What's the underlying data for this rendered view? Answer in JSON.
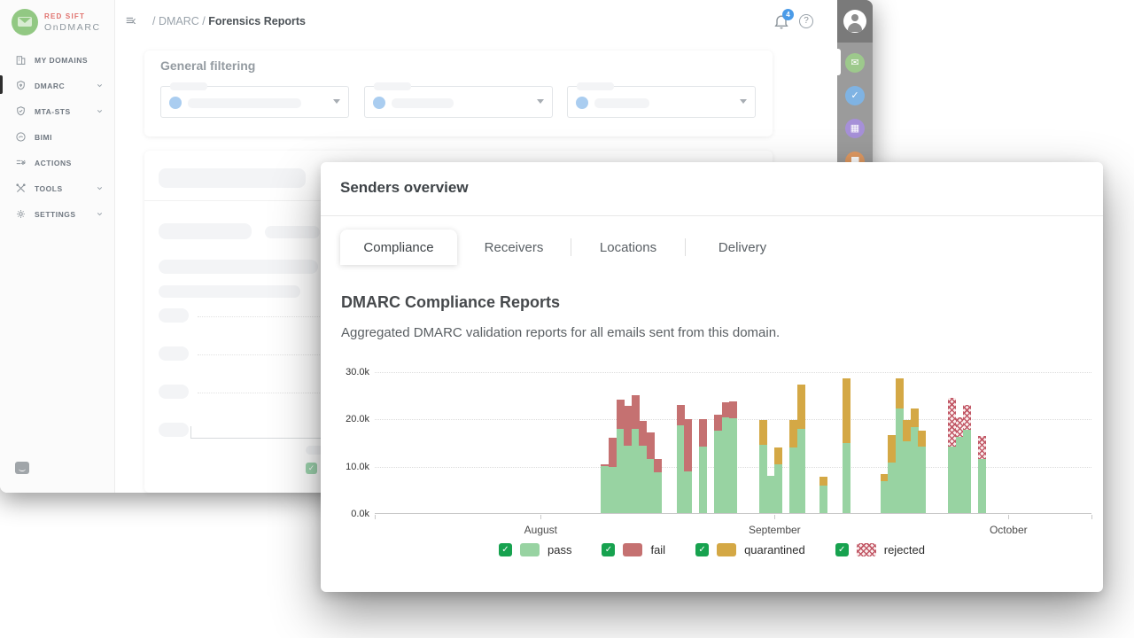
{
  "sidebar": {
    "logo": {
      "line1": "RED SIFT",
      "line2": "OnDMARC"
    },
    "items": [
      {
        "label": "MY DOMAINS",
        "chevron": false,
        "active": false
      },
      {
        "label": "DMARC",
        "chevron": true,
        "active": true
      },
      {
        "label": "MTA-STS",
        "chevron": true,
        "active": false
      },
      {
        "label": "BIMI",
        "chevron": false,
        "active": false
      },
      {
        "label": "ACTIONS",
        "chevron": false,
        "active": false
      },
      {
        "label": "TOOLS",
        "chevron": true,
        "active": false
      },
      {
        "label": "SETTINGS",
        "chevron": true,
        "active": false
      }
    ]
  },
  "topbar": {
    "breadcrumb_prefix": "/ DMARC / ",
    "breadcrumb_current": "Forensics Reports",
    "notifications_count": "4",
    "help_label": "?"
  },
  "filters": {
    "title": "General filtering"
  },
  "overlay": {
    "title": "Senders overview",
    "tabs": [
      {
        "label": "Compliance",
        "active": true
      },
      {
        "label": "Receivers",
        "active": false
      },
      {
        "label": "Locations",
        "active": false
      },
      {
        "label": "Delivery",
        "active": false
      }
    ],
    "heading": "DMARC Compliance Reports",
    "subtitle": "Aggregated DMARC validation reports for all emails sent from this domain."
  },
  "chart_data": {
    "type": "bar",
    "stacked": true,
    "title": "DMARC Compliance Reports",
    "ylim": [
      0,
      30000
    ],
    "grid": "dotted-horizontal",
    "legend_position": "bottom",
    "y_ticks": [
      {
        "label": "0.0k",
        "value": 0
      },
      {
        "label": "10.0k",
        "value": 10000
      },
      {
        "label": "20.0k",
        "value": 20000
      },
      {
        "label": "30.0k",
        "value": 30000
      }
    ],
    "axis_days": 95,
    "x_ticks": [
      {
        "label": "",
        "day": 0
      },
      {
        "label": "August",
        "day": 22
      },
      {
        "label": "September",
        "day": 53
      },
      {
        "label": "October",
        "day": 84
      },
      {
        "label": "",
        "day": 95
      }
    ],
    "series": [
      {
        "name": "pass",
        "color": "#98d3a2",
        "pattern": "solid",
        "checked": true
      },
      {
        "name": "fail",
        "color": "#c57171",
        "pattern": "solid",
        "checked": true
      },
      {
        "name": "quarantined",
        "color": "#d4a845",
        "pattern": "solid",
        "checked": true
      },
      {
        "name": "rejected",
        "color": "#bf5261",
        "pattern": "crosshatch",
        "checked": true
      }
    ],
    "bars": [
      {
        "day": 30,
        "pass": 9900,
        "fail": 500,
        "quarantined": 0,
        "rejected": 0
      },
      {
        "day": 31,
        "pass": 9800,
        "fail": 6200,
        "quarantined": 0,
        "rejected": 0
      },
      {
        "day": 32,
        "pass": 17800,
        "fail": 6200,
        "quarantined": 0,
        "rejected": 0
      },
      {
        "day": 33,
        "pass": 14300,
        "fail": 8300,
        "quarantined": 0,
        "rejected": 0
      },
      {
        "day": 34,
        "pass": 17900,
        "fail": 7000,
        "quarantined": 0,
        "rejected": 0
      },
      {
        "day": 35,
        "pass": 14300,
        "fail": 5200,
        "quarantined": 0,
        "rejected": 0
      },
      {
        "day": 36,
        "pass": 11500,
        "fail": 5500,
        "quarantined": 0,
        "rejected": 0
      },
      {
        "day": 37,
        "pass": 8600,
        "fail": 2800,
        "quarantined": 0,
        "rejected": 0
      },
      {
        "day": 40,
        "pass": 18500,
        "fail": 4400,
        "quarantined": 0,
        "rejected": 0
      },
      {
        "day": 41,
        "pass": 8900,
        "fail": 11000,
        "quarantined": 0,
        "rejected": 0
      },
      {
        "day": 43,
        "pass": 14100,
        "fail": 5700,
        "quarantined": 0,
        "rejected": 0
      },
      {
        "day": 45,
        "pass": 17500,
        "fail": 3400,
        "quarantined": 0,
        "rejected": 0
      },
      {
        "day": 46,
        "pass": 20300,
        "fail": 3100,
        "quarantined": 0,
        "rejected": 0
      },
      {
        "day": 47,
        "pass": 20000,
        "fail": 3700,
        "quarantined": 0,
        "rejected": 0
      },
      {
        "day": 51,
        "pass": 14400,
        "fail": 0,
        "quarantined": 5300,
        "rejected": 0
      },
      {
        "day": 52,
        "pass": 7900,
        "fail": 0,
        "quarantined": 0,
        "rejected": 0
      },
      {
        "day": 53,
        "pass": 10400,
        "fail": 0,
        "quarantined": 3400,
        "rejected": 0
      },
      {
        "day": 55,
        "pass": 13800,
        "fail": 0,
        "quarantined": 5900,
        "rejected": 0
      },
      {
        "day": 56,
        "pass": 17800,
        "fail": 0,
        "quarantined": 9300,
        "rejected": 0
      },
      {
        "day": 59,
        "pass": 5800,
        "fail": 0,
        "quarantined": 1900,
        "rejected": 0
      },
      {
        "day": 62,
        "pass": 14900,
        "fail": 0,
        "quarantined": 13600,
        "rejected": 0
      },
      {
        "day": 67,
        "pass": 6700,
        "fail": 0,
        "quarantined": 1600,
        "rejected": 0
      },
      {
        "day": 68,
        "pass": 10700,
        "fail": 0,
        "quarantined": 5800,
        "rejected": 0
      },
      {
        "day": 69,
        "pass": 22200,
        "fail": 0,
        "quarantined": 6300,
        "rejected": 0
      },
      {
        "day": 70,
        "pass": 15200,
        "fail": 0,
        "quarantined": 4500,
        "rejected": 0
      },
      {
        "day": 71,
        "pass": 18100,
        "fail": 0,
        "quarantined": 4000,
        "rejected": 0
      },
      {
        "day": 72,
        "pass": 14100,
        "fail": 0,
        "quarantined": 3400,
        "rejected": 0
      },
      {
        "day": 76,
        "pass": 14100,
        "fail": 0,
        "quarantined": 0,
        "rejected": 10300
      },
      {
        "day": 77,
        "pass": 16200,
        "fail": 0,
        "quarantined": 0,
        "rejected": 4000
      },
      {
        "day": 78,
        "pass": 17700,
        "fail": 0,
        "quarantined": 0,
        "rejected": 5100
      },
      {
        "day": 80,
        "pass": 11500,
        "fail": 0,
        "quarantined": 0,
        "rejected": 4800
      }
    ]
  }
}
